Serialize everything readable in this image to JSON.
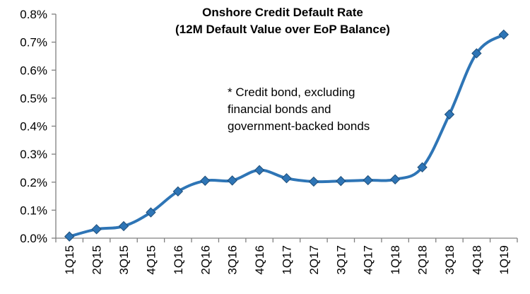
{
  "chart_data": {
    "type": "line",
    "title_lines": [
      "Onshore Credit Default Rate",
      "(12M Default Value over EoP Balance)"
    ],
    "annotation_lines": [
      "* Credit bond, excluding",
      "financial bonds and",
      "government-backed bonds"
    ],
    "categories": [
      "1Q15",
      "2Q15",
      "3Q15",
      "4Q15",
      "1Q16",
      "2Q16",
      "3Q16",
      "4Q16",
      "1Q17",
      "2Q17",
      "3Q17",
      "4Q17",
      "1Q18",
      "2Q18",
      "3Q18",
      "4Q18",
      "1Q19"
    ],
    "series": [
      {
        "values": [
          0.006,
          0.032,
          0.043,
          0.092,
          0.167,
          0.205,
          0.206,
          0.243,
          0.214,
          0.202,
          0.204,
          0.207,
          0.21,
          0.253,
          0.442,
          0.66,
          0.727
        ],
        "color": "#2E75B6"
      }
    ],
    "y_tick_labels": [
      "0.0%",
      "0.1%",
      "0.2%",
      "0.3%",
      "0.4%",
      "0.5%",
      "0.6%",
      "0.7%",
      "0.8%"
    ],
    "ylim": [
      0,
      0.8
    ],
    "y_unit": "%",
    "grid": false,
    "legend": "none",
    "marker": "diamond"
  }
}
